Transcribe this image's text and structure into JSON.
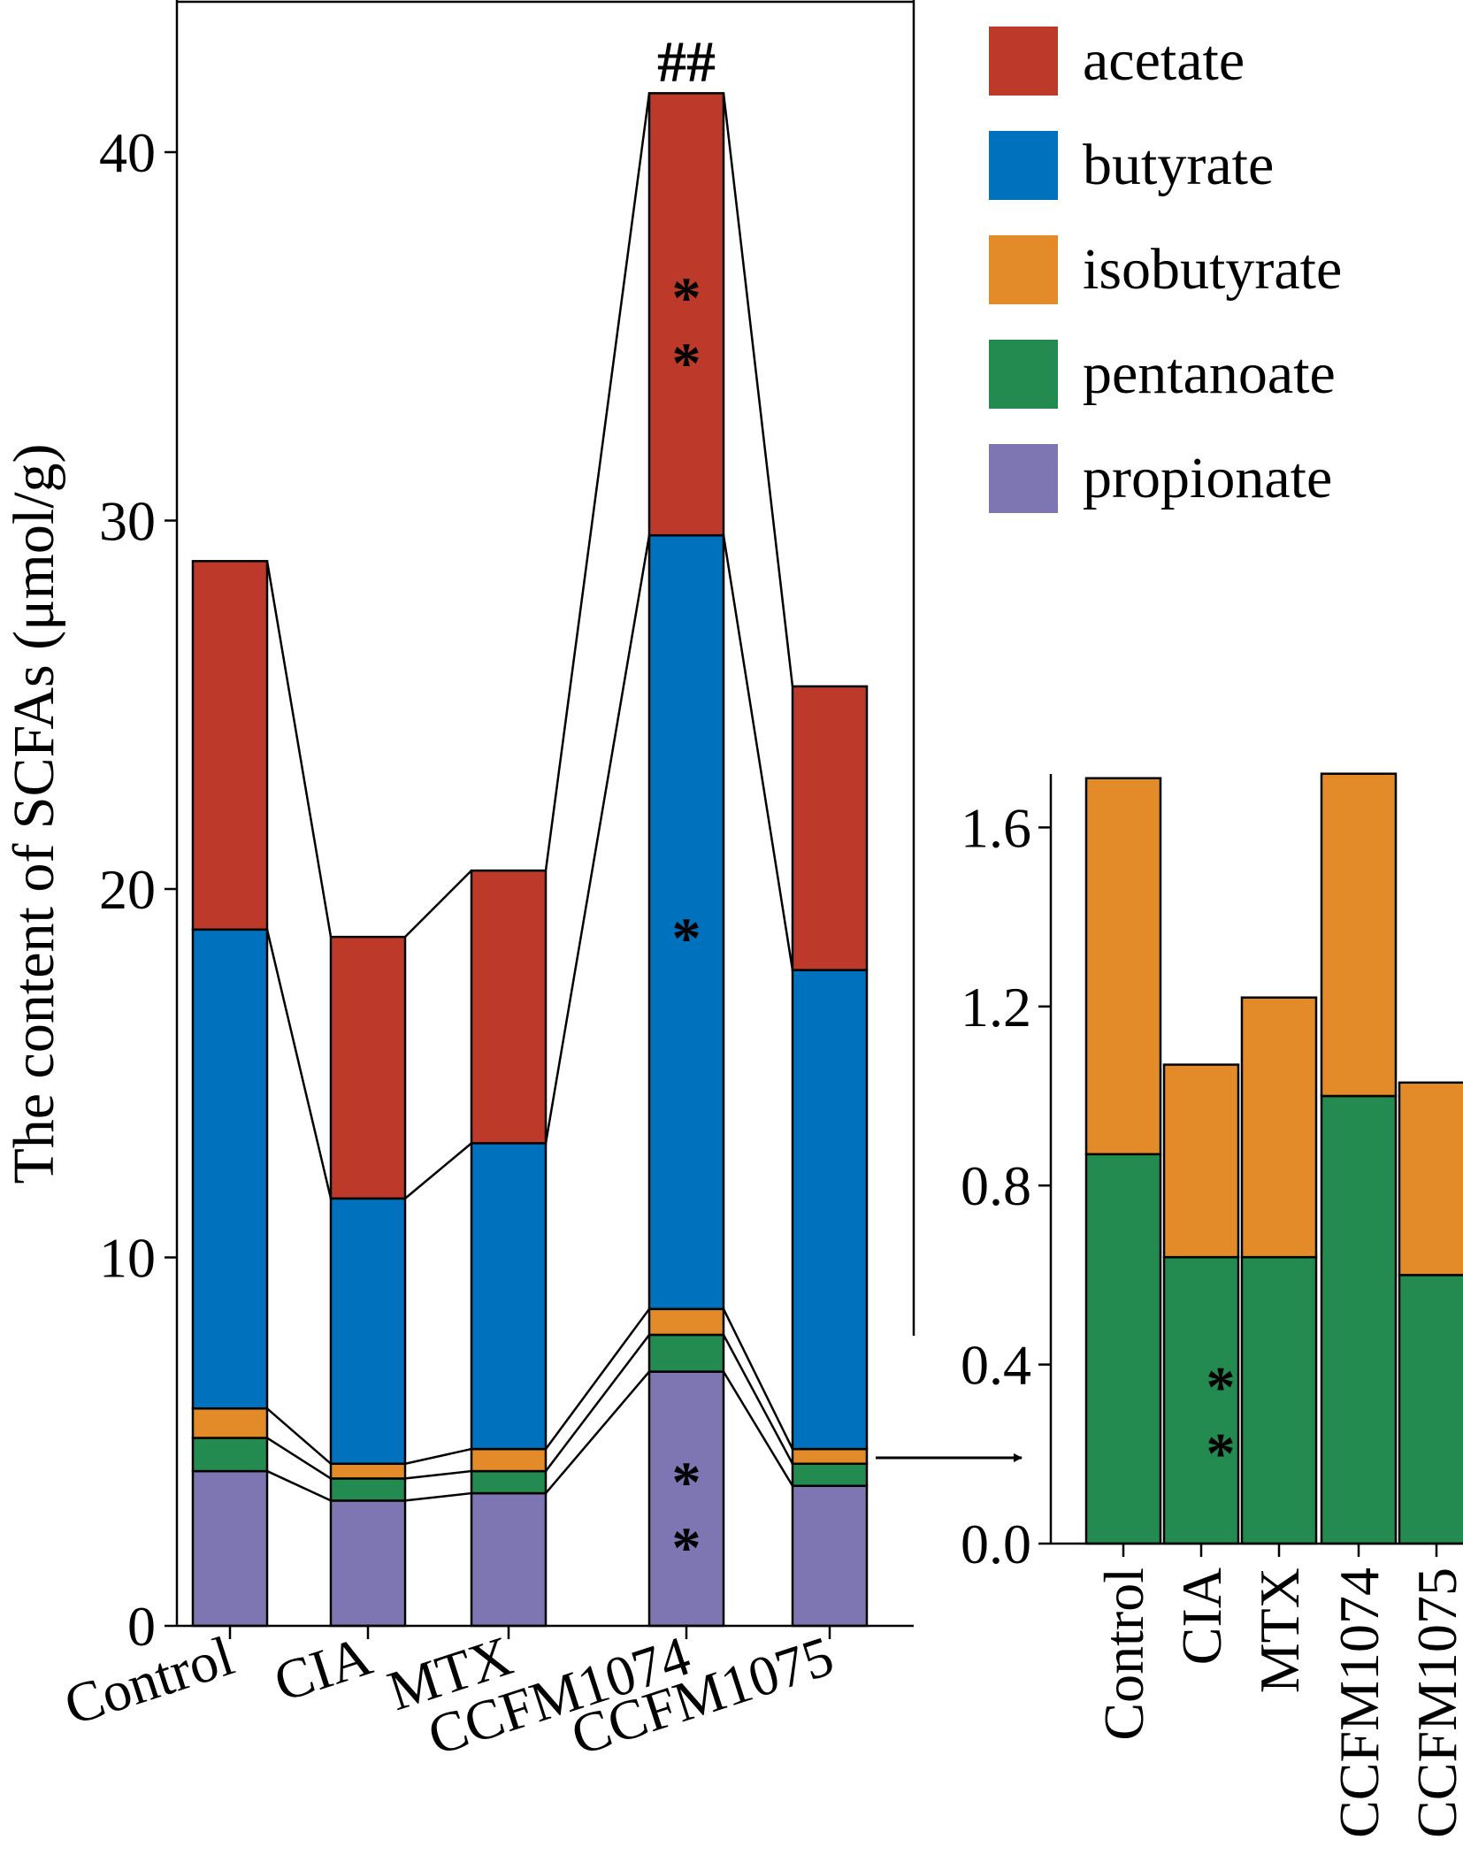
{
  "colors": {
    "acetate": "#BD3A2A",
    "butyrate": "#0071BC",
    "isobutyrate": "#E38A29",
    "pentanoate": "#238B4F",
    "propionate": "#7D76B3"
  },
  "legend": [
    {
      "key": "acetate",
      "label": "acetate"
    },
    {
      "key": "butyrate",
      "label": "butyrate"
    },
    {
      "key": "isobutyrate",
      "label": "isobutyrate"
    },
    {
      "key": "pentanoate",
      "label": "pentanoate"
    },
    {
      "key": "propionate",
      "label": "propionate"
    }
  ],
  "chart_data": [
    {
      "type": "bar",
      "stacked": true,
      "title": "",
      "ylabel": "The content of SCFAs (μmol/g)",
      "xlabel": "",
      "ylim": [
        0,
        44
      ],
      "yticks": [
        0,
        10,
        20,
        30,
        40
      ],
      "ytick_labels": [
        "0",
        "10",
        "20",
        "30",
        "40"
      ],
      "categories": [
        "Control",
        "CIA",
        "MTX",
        "CCFM1074",
        "CCFM1075"
      ],
      "series": [
        {
          "name": "propionate",
          "values": [
            4.2,
            3.4,
            3.6,
            6.9,
            3.8
          ]
        },
        {
          "name": "pentanoate",
          "values": [
            0.9,
            0.6,
            0.6,
            1.0,
            0.6
          ]
        },
        {
          "name": "isobutyrate",
          "values": [
            0.8,
            0.4,
            0.6,
            0.7,
            0.4
          ]
        },
        {
          "name": "butyrate",
          "values": [
            13.0,
            7.2,
            8.3,
            21.0,
            13.0
          ]
        },
        {
          "name": "acetate",
          "values": [
            10.0,
            7.1,
            7.4,
            12.0,
            7.7
          ]
        }
      ],
      "annotations": [
        {
          "category": "CCFM1074",
          "series": "acetate",
          "text": "**",
          "color": "#000000"
        },
        {
          "category": "CCFM1074",
          "series": "butyrate",
          "text": "*",
          "color": "#000000"
        },
        {
          "category": "CCFM1074",
          "series": "propionate",
          "text": "**",
          "color": "#000000"
        },
        {
          "category": "CCFM1074",
          "position": "above",
          "text": "##",
          "color": "#000000"
        }
      ]
    },
    {
      "type": "bar",
      "stacked": true,
      "title": "",
      "ylabel": "",
      "xlabel": "",
      "ylim": [
        0,
        1.72
      ],
      "yticks": [
        0.0,
        0.4,
        0.8,
        1.2,
        1.6
      ],
      "ytick_labels": [
        "0.0",
        "0.4",
        "0.8",
        "1.2",
        "1.6"
      ],
      "categories": [
        "Control",
        "CIA",
        "MTX",
        "CCFM1074",
        "CCFM1075"
      ],
      "series": [
        {
          "name": "pentanoate",
          "values": [
            0.87,
            0.64,
            0.64,
            1.0,
            0.6
          ]
        },
        {
          "name": "isobutyrate",
          "values": [
            0.84,
            0.43,
            0.58,
            0.72,
            0.43
          ]
        }
      ],
      "annotations": [
        {
          "category": "CIA",
          "series": "pentanoate",
          "text": "**",
          "color": "#ffffff"
        }
      ]
    }
  ]
}
